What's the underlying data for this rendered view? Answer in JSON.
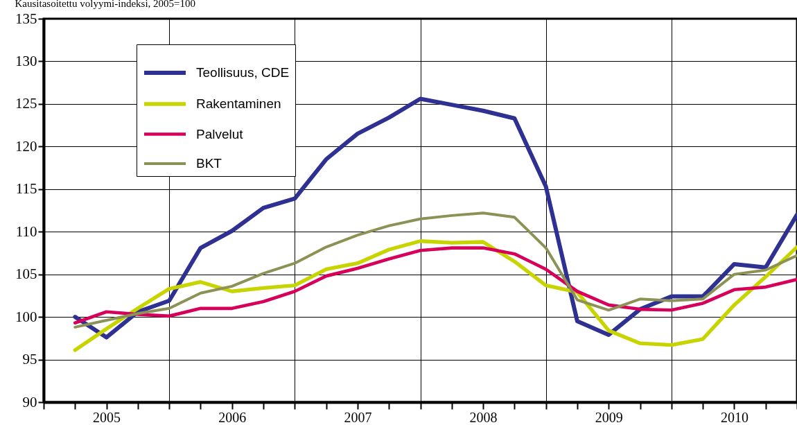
{
  "chart_data": {
    "type": "line",
    "title": "Kausitasoitettu volyymi-indeksi, 2005=100",
    "x": [
      2005.25,
      2005.5,
      2005.75,
      2006,
      2006.25,
      2006.5,
      2006.75,
      2007,
      2007.25,
      2007.5,
      2007.75,
      2008,
      2008.25,
      2008.5,
      2008.75,
      2009,
      2009.25,
      2009.5,
      2009.75,
      2010,
      2010.25,
      2010.5,
      2010.75,
      2011
    ],
    "series": [
      {
        "name": "Teollisuus, CDE",
        "color": "#2e3192",
        "values": [
          100.0,
          97.6,
          100.6,
          101.9,
          108.1,
          110.1,
          112.8,
          113.9,
          118.5,
          121.5,
          123.4,
          125.6,
          124.9,
          124.2,
          123.3,
          115.3,
          99.5,
          97.9,
          100.9,
          102.4,
          102.4,
          106.2,
          105.8,
          112.0
        ]
      },
      {
        "name": "Rakentaminen",
        "color": "#c8d400",
        "values": [
          96.1,
          98.6,
          101.0,
          103.3,
          104.1,
          103.0,
          103.4,
          103.7,
          105.6,
          106.3,
          107.9,
          108.9,
          108.7,
          108.8,
          106.5,
          103.7,
          102.9,
          98.4,
          96.9,
          96.7,
          97.4,
          101.4,
          104.7,
          108.2
        ]
      },
      {
        "name": "Palvelut",
        "color": "#d6005a",
        "values": [
          99.3,
          100.6,
          100.3,
          100.1,
          101.0,
          101.0,
          101.8,
          103.0,
          104.8,
          105.7,
          106.8,
          107.8,
          108.1,
          108.1,
          107.4,
          105.6,
          103.0,
          101.4,
          100.9,
          100.8,
          101.6,
          103.2,
          103.5,
          104.4
        ]
      },
      {
        "name": "BKT",
        "color": "#8c9155",
        "values": [
          98.8,
          99.6,
          100.4,
          101.0,
          102.8,
          103.6,
          105.1,
          106.3,
          108.2,
          109.6,
          110.7,
          111.5,
          111.9,
          112.2,
          111.7,
          108.1,
          102.0,
          100.8,
          102.1,
          101.9,
          102.1,
          105.0,
          105.5,
          107.2
        ]
      }
    ],
    "xlim": [
      2005,
      2011
    ],
    "xticks": [
      {
        "value": 2005,
        "label": null
      },
      {
        "value": 2005.25,
        "label": null
      },
      {
        "value": 2005.5,
        "label": "2005"
      },
      {
        "value": 2005.75,
        "label": null
      },
      {
        "value": 2006,
        "label": null
      },
      {
        "value": 2006.25,
        "label": null
      },
      {
        "value": 2006.5,
        "label": "2006"
      },
      {
        "value": 2006.75,
        "label": null
      },
      {
        "value": 2007,
        "label": null
      },
      {
        "value": 2007.25,
        "label": null
      },
      {
        "value": 2007.5,
        "label": "2007"
      },
      {
        "value": 2007.75,
        "label": null
      },
      {
        "value": 2008,
        "label": null
      },
      {
        "value": 2008.25,
        "label": null
      },
      {
        "value": 2008.5,
        "label": "2008"
      },
      {
        "value": 2008.75,
        "label": null
      },
      {
        "value": 2009,
        "label": null
      },
      {
        "value": 2009.25,
        "label": null
      },
      {
        "value": 2009.5,
        "label": "2009"
      },
      {
        "value": 2009.75,
        "label": null
      },
      {
        "value": 2010,
        "label": null
      },
      {
        "value": 2010.25,
        "label": null
      },
      {
        "value": 2010.5,
        "label": "2010"
      },
      {
        "value": 2010.75,
        "label": null
      },
      {
        "value": 2011,
        "label": null
      }
    ],
    "ylim": [
      90,
      135
    ],
    "yticks": [
      90,
      95,
      100,
      105,
      110,
      115,
      120,
      125,
      130,
      135
    ],
    "grid": true,
    "legend": "top left",
    "marker": "none",
    "line_style": "solid"
  }
}
